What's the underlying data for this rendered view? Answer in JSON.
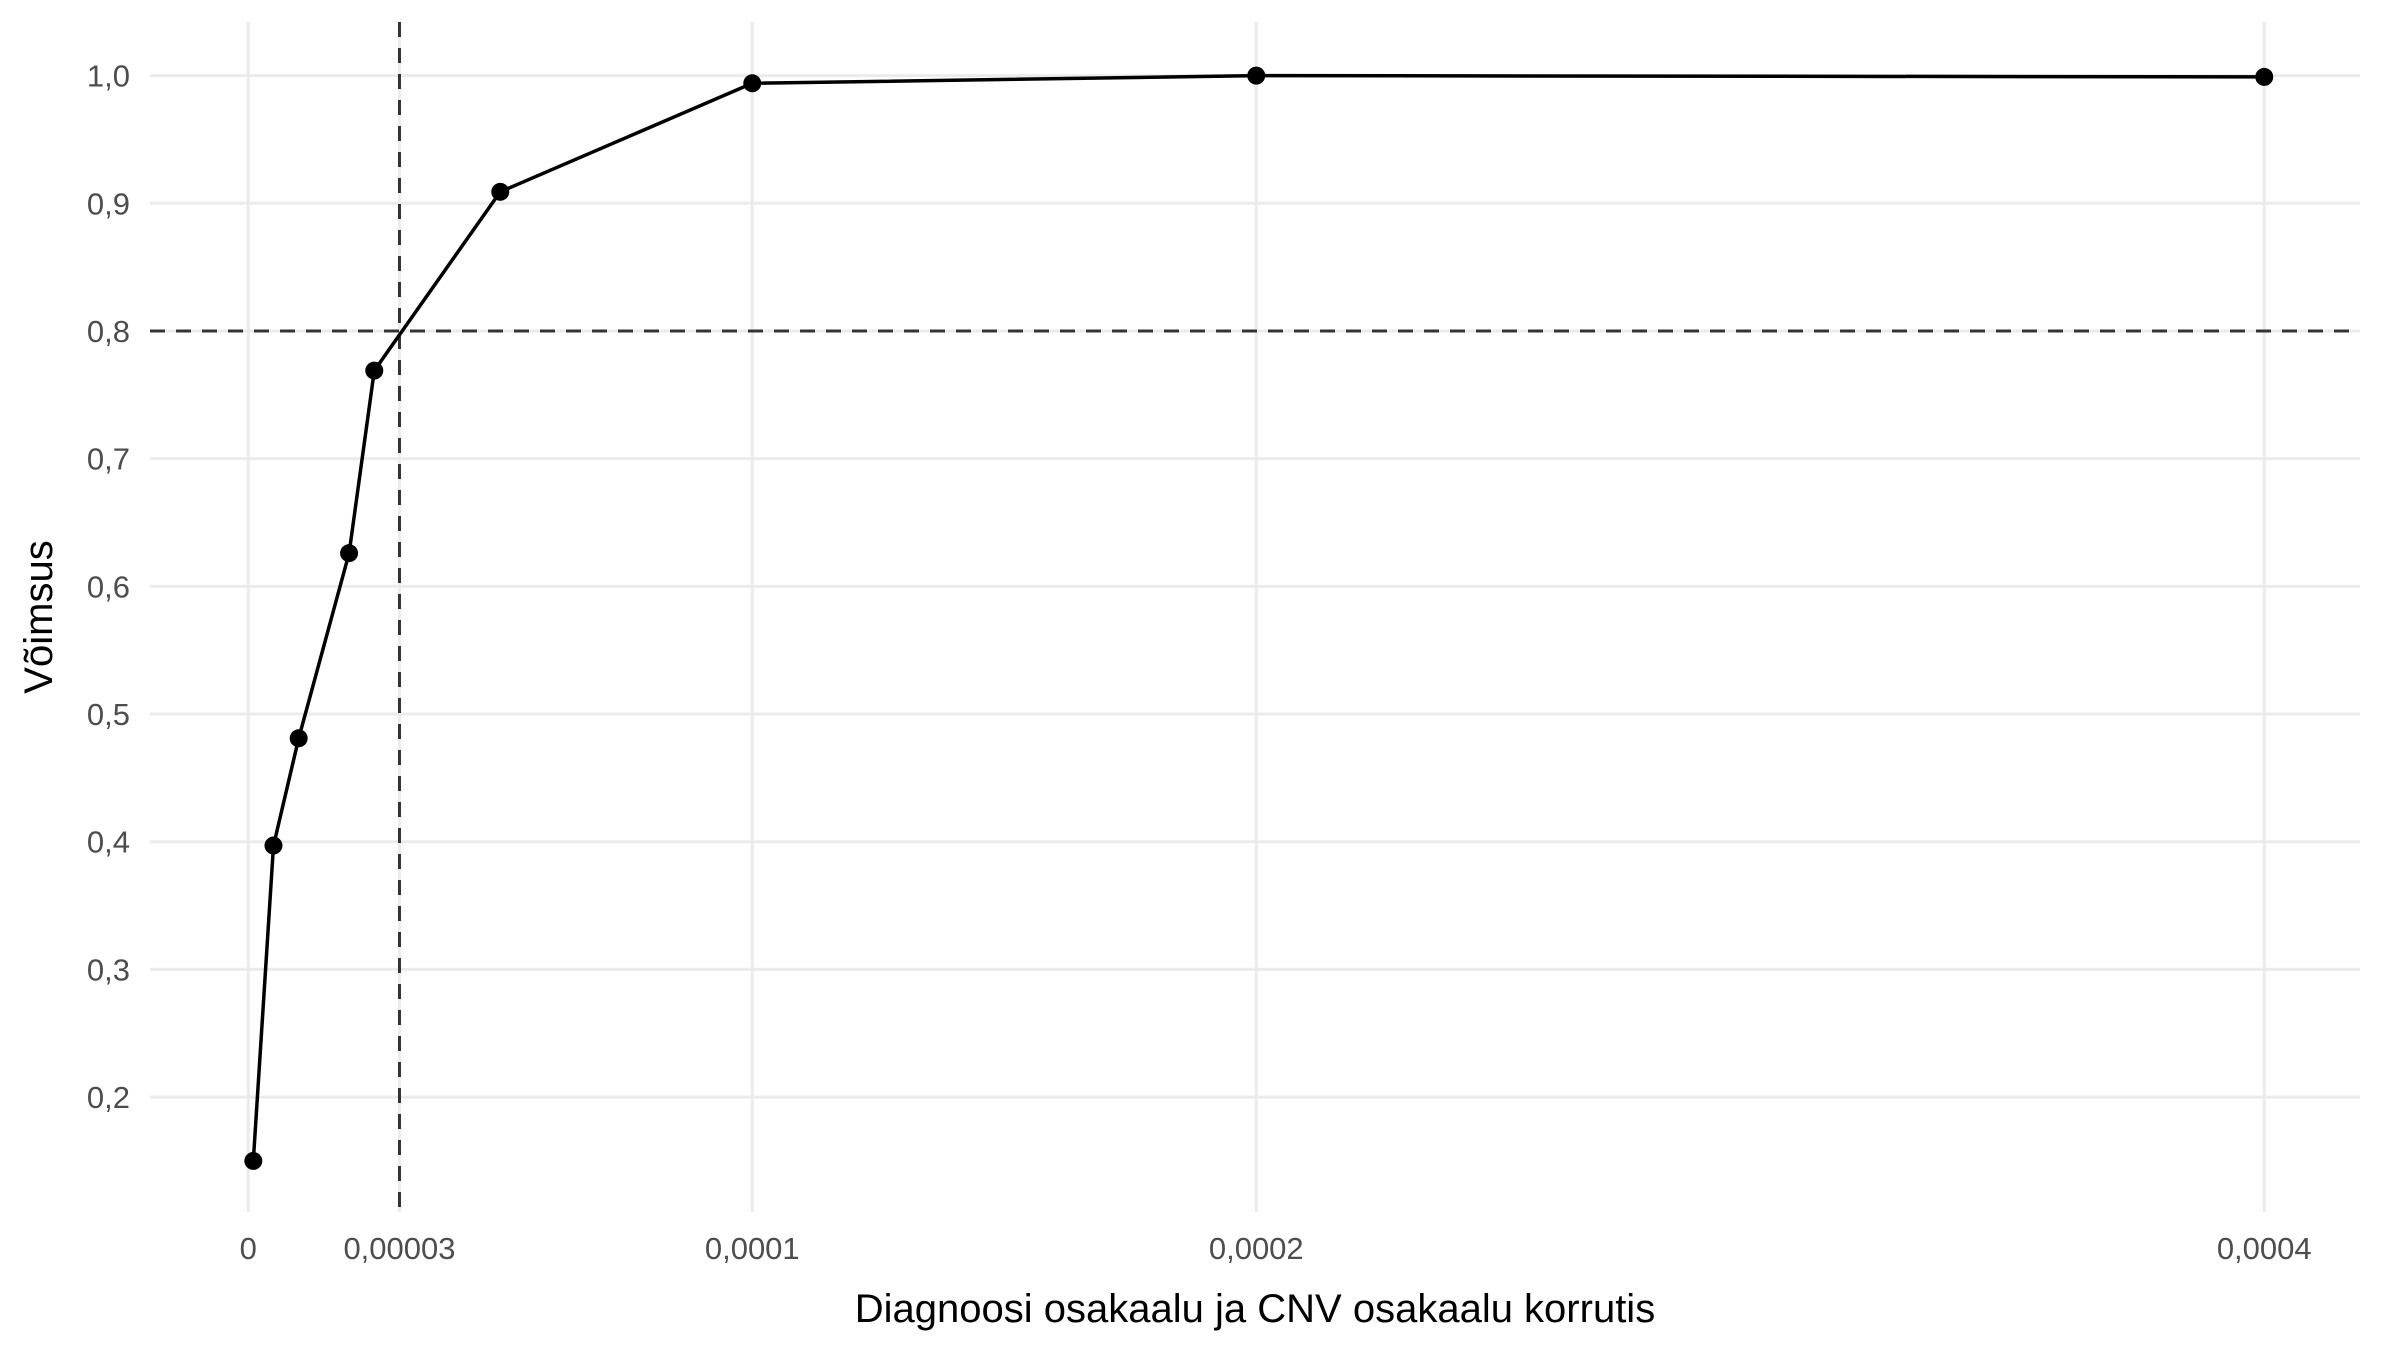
{
  "chart_data": {
    "type": "line",
    "title": "",
    "xlabel": "Diagnoosi osakaalu ja CNV osakaalu korrutis",
    "ylabel": "Võimsus",
    "x_ticks": [
      {
        "value": 0,
        "label": "0"
      },
      {
        "value": 3e-05,
        "label": "0,00003"
      },
      {
        "value": 0.0001,
        "label": "0,0001"
      },
      {
        "value": 0.0002,
        "label": "0,0002"
      },
      {
        "value": 0.0004,
        "label": "0,0004"
      }
    ],
    "y_ticks": [
      {
        "value": 0.2,
        "label": "0,2"
      },
      {
        "value": 0.3,
        "label": "0,3"
      },
      {
        "value": 0.4,
        "label": "0,4"
      },
      {
        "value": 0.5,
        "label": "0,5"
      },
      {
        "value": 0.6,
        "label": "0,6"
      },
      {
        "value": 0.7,
        "label": "0,7"
      },
      {
        "value": 0.8,
        "label": "0,8"
      },
      {
        "value": 0.9,
        "label": "0,9"
      },
      {
        "value": 1.0,
        "label": "1,0"
      }
    ],
    "xlim": [
      -1.95e-05,
      0.000419
    ],
    "ylim": [
      0.11,
      1.042
    ],
    "grid": true,
    "legend": "none",
    "reference_lines": {
      "vertical_x": 3e-05,
      "horizontal_y": 0.8,
      "style": "dashed"
    },
    "series": [
      {
        "x": [
          1e-06,
          5e-06,
          1e-05,
          2e-05,
          2.5e-05,
          5e-05,
          0.0001,
          0.0002,
          0.0004
        ],
        "y": [
          0.15,
          0.397,
          0.481,
          0.626,
          0.769,
          0.909,
          0.994,
          1.0,
          0.999
        ]
      }
    ],
    "colors": {
      "line": "#000000",
      "points": "#000000",
      "grid": "#ebebeb",
      "reference": "#333333",
      "tick_text": "#4d4d4d"
    }
  }
}
